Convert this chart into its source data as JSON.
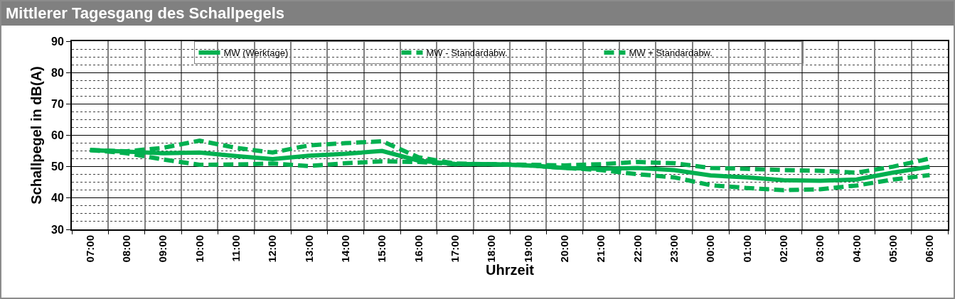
{
  "chart_data": {
    "type": "line",
    "title": "Mittlerer Tagesgang des Schallpegels",
    "xlabel": "Uhrzeit",
    "ylabel": "Schallpegel in dB(A)",
    "categories": [
      "07:00",
      "08:00",
      "09:00",
      "10:00",
      "11:00",
      "12:00",
      "13:00",
      "14:00",
      "15:00",
      "16:00",
      "17:00",
      "18:00",
      "19:00",
      "20:00",
      "21:00",
      "22:00",
      "23:00",
      "00:00",
      "01:00",
      "02:00",
      "03:00",
      "04:00",
      "05:00",
      "06:00"
    ],
    "series": [
      {
        "name": "MW (Werktage)",
        "color": "#00b050",
        "line_style": "solid",
        "values": [
          55.3,
          54.8,
          54.3,
          54.5,
          53.4,
          52.4,
          53.5,
          54.1,
          55,
          51.9,
          50.9,
          50.8,
          50.4,
          49.6,
          49.3,
          49.6,
          48.9,
          47.2,
          46.6,
          45.7,
          45.5,
          45.9,
          48.1,
          50
        ]
      },
      {
        "name": "MW - Standardabw.",
        "color": "#00b050",
        "line_style": "dashed",
        "values": [
          55.3,
          54.3,
          52.3,
          50.6,
          50.7,
          51,
          50.2,
          51.1,
          51.7,
          51.5,
          50.8,
          50.8,
          50.4,
          49.6,
          48.9,
          47.6,
          46.6,
          44.1,
          43.2,
          42.5,
          42.8,
          44,
          45.9,
          47.3
        ]
      },
      {
        "name": "MW + Standardabw.",
        "color": "#00b050",
        "line_style": "dashed",
        "values": [
          55.3,
          54.9,
          56,
          58.3,
          56,
          54.5,
          56.8,
          57.5,
          58.1,
          53,
          51,
          50.8,
          50.6,
          50.4,
          50.8,
          51.5,
          51.1,
          49.6,
          49.3,
          48.9,
          48.7,
          48.1,
          50,
          52.6
        ]
      }
    ],
    "ylim": [
      30,
      90
    ],
    "yticks": [
      30,
      40,
      50,
      60,
      70,
      80,
      90
    ],
    "grid": true,
    "legend": "top",
    "marker": "none"
  }
}
